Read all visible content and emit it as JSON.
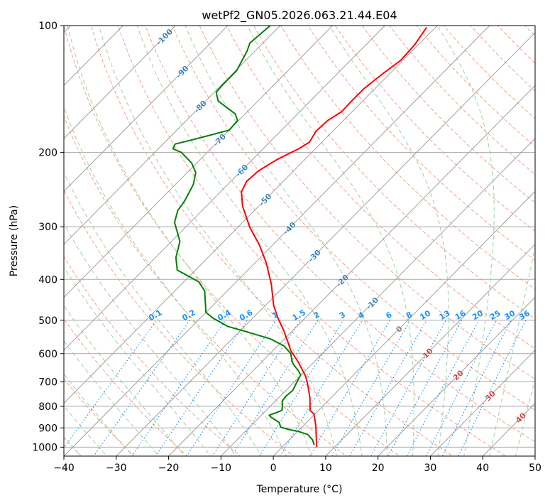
{
  "chart_data": {
    "type": "line",
    "subtype": "skew-T log-p diagram",
    "title": "wetPf2_GN05.2026.063.21.44.E04",
    "xlabel": "Temperature (°C)",
    "ylabel": "Pressure (hPa)",
    "xlim": [
      -40,
      50
    ],
    "ylim": [
      1050,
      100
    ],
    "yscale": "log",
    "grid": true,
    "xticks": [
      "−40",
      "−30",
      "−20",
      "−10",
      "0",
      "10",
      "20",
      "30",
      "40",
      "50"
    ],
    "xtick_values": [
      -40,
      -30,
      -20,
      -10,
      0,
      10,
      20,
      30,
      40,
      50
    ],
    "yticks": [
      "100",
      "200",
      "300",
      "400",
      "500",
      "600",
      "700",
      "800",
      "900",
      "1000"
    ],
    "ytick_values": [
      100,
      200,
      300,
      400,
      500,
      600,
      700,
      800,
      900,
      1000
    ],
    "isotherm_labels": [
      "-100",
      "-90",
      "-80",
      "-70",
      "-60",
      "-50",
      "-40",
      "-30",
      "-20",
      "-10",
      "0",
      "10",
      "20",
      "30",
      "40"
    ],
    "isotherm_label_values": [
      -100,
      -90,
      -80,
      -70,
      -60,
      -50,
      -40,
      -30,
      -20,
      -10,
      0,
      10,
      20,
      30,
      40
    ],
    "mixing_ratio_labels": [
      "0.1",
      "0.2",
      "0.4",
      "0.6",
      "1",
      "1.5",
      "2",
      "3",
      "4",
      "6",
      "8",
      "10",
      "13",
      "16",
      "20",
      "25",
      "30",
      "36"
    ],
    "mixing_ratio_values": [
      0.1,
      0.2,
      0.4,
      0.6,
      1,
      1.5,
      2,
      3,
      4,
      6,
      8,
      10,
      13,
      16,
      20,
      25,
      30,
      36
    ],
    "colors": {
      "temperature": "#ff0000",
      "dewpoint": "#008000",
      "isotherm": "#a0a0a0",
      "dry_adiabat": "#f5a08a",
      "moist_adiabat": "#9fd09f",
      "mixing_ratio": "#1e90ff",
      "label_negative": "#1f77b4",
      "label_zero": "#707070",
      "label_positive": "#d62728"
    },
    "series": [
      {
        "name": "Temperature",
        "pressure": [
          1000,
          890,
          834,
          818,
          762,
          706,
          679,
          628,
          590,
          559,
          528,
          498,
          461,
          410,
          365,
          331,
          301,
          268,
          248,
          234,
          221,
          208,
          196,
          189,
          178,
          168,
          160,
          151,
          141,
          130,
          121,
          111,
          101
        ],
        "values": [
          6.6,
          2.4,
          -0.2,
          -1.6,
          -4.1,
          -7.2,
          -8.9,
          -13.0,
          -16.6,
          -19.1,
          -21.8,
          -24.8,
          -28.4,
          -32.9,
          -37.9,
          -42.6,
          -47.7,
          -53.1,
          -56.0,
          -57.0,
          -56.7,
          -55.3,
          -53.2,
          -52.4,
          -53.2,
          -53.0,
          -52.0,
          -52.1,
          -52.1,
          -51.3,
          -50.4,
          -50.7,
          -51.7
        ]
      },
      {
        "name": "Dewpoint",
        "pressure": [
          988,
          962,
          933,
          918,
          908,
          897,
          873,
          850,
          840,
          830,
          818,
          799,
          777,
          757,
          733,
          700,
          674,
          658,
          635,
          623,
          600,
          575,
          553,
          532,
          517,
          494,
          479,
          426,
          405,
          380,
          355,
          325,
          293,
          275,
          261,
          238,
          223,
          212,
          200,
          196,
          191,
          185,
          177,
          168,
          162,
          151,
          144,
          139,
          128,
          115,
          110,
          100
        ],
        "values": [
          5.7,
          4.5,
          2.5,
          0.2,
          -2.0,
          -4.0,
          -5.3,
          -7.7,
          -8.5,
          -7.8,
          -7.0,
          -7.7,
          -8.7,
          -8.9,
          -8.7,
          -9.5,
          -10.1,
          -11.4,
          -13.6,
          -14.5,
          -16.0,
          -18.8,
          -22.8,
          -28.7,
          -33.2,
          -37.6,
          -40.0,
          -44.3,
          -47.2,
          -53.5,
          -56.1,
          -58.4,
          -63.0,
          -64.6,
          -65.1,
          -66.6,
          -68.4,
          -70.9,
          -74.9,
          -77.2,
          -77.7,
          -74.3,
          -70.0,
          -70.2,
          -71.9,
          -77.6,
          -79.6,
          -79.8,
          -79.8,
          -81.5,
          -82.5,
          -81.9
        ]
      }
    ]
  }
}
